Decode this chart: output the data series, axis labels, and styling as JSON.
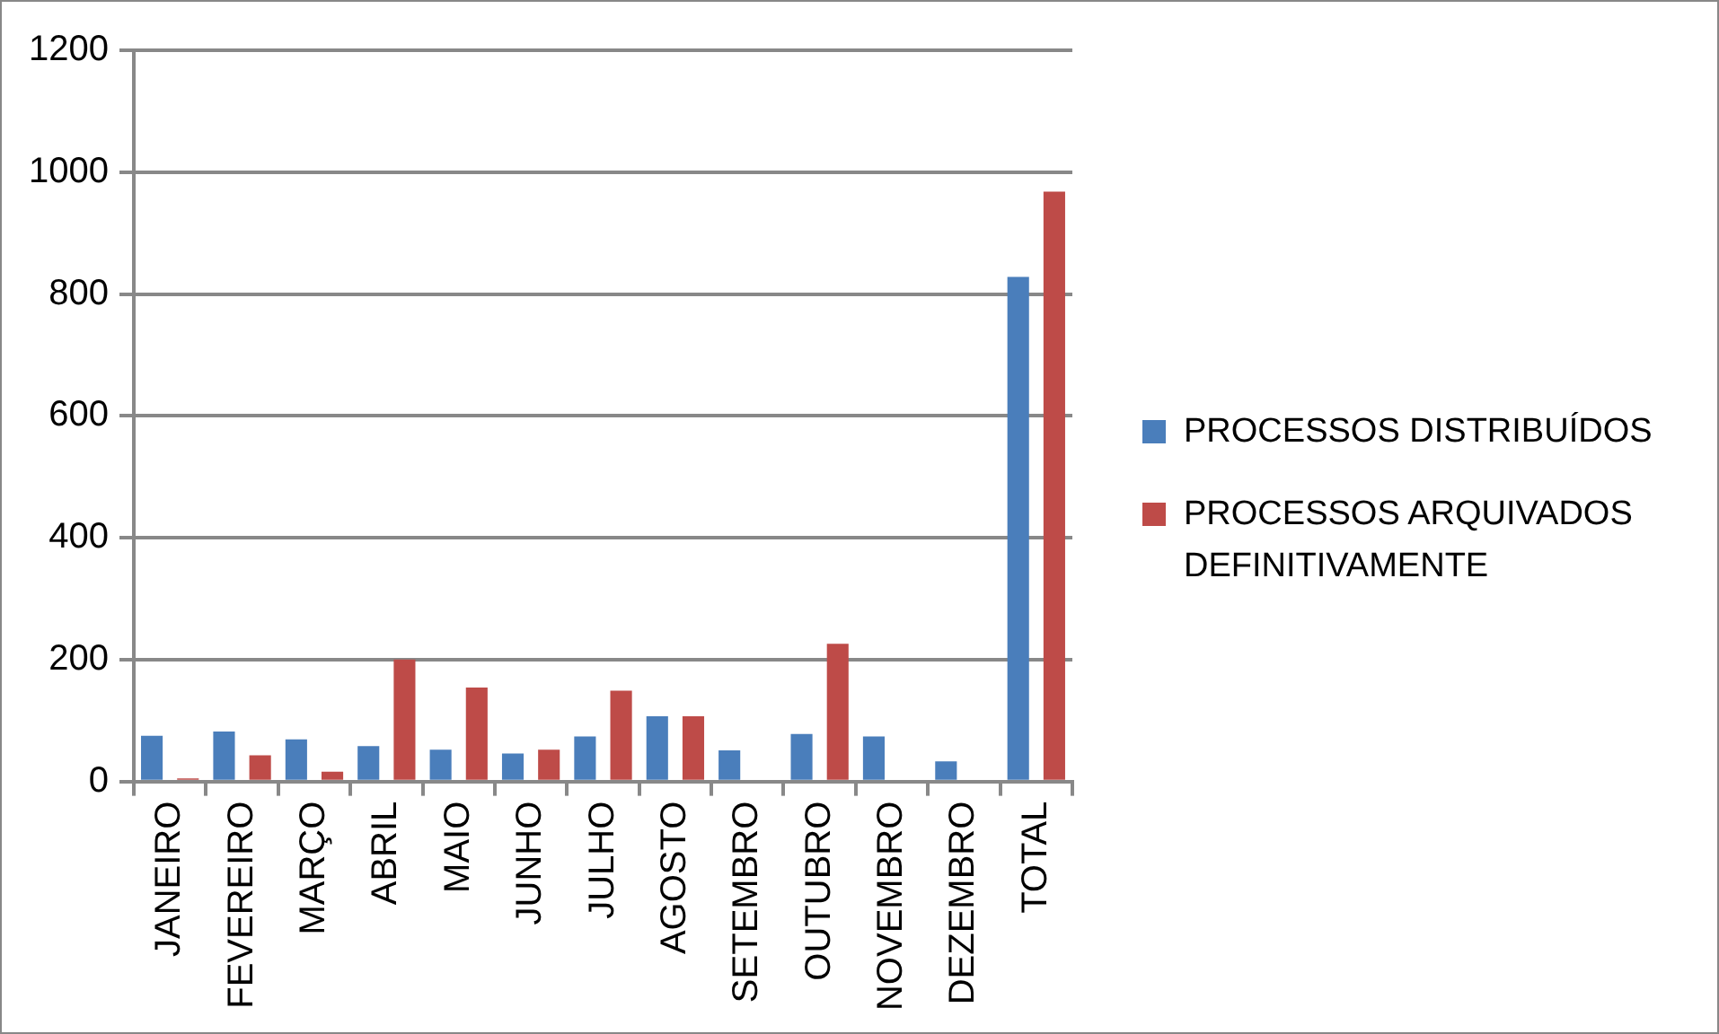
{
  "chart_data": {
    "type": "bar",
    "categories": [
      "JANEIRO",
      "FEVEREIRO",
      "MARÇO",
      "ABRIL",
      "MAIO",
      "JUNHO",
      "JULHO",
      "AGOSTO",
      "SETEMBRO",
      "OUTUBRO",
      "NOVEMBRO",
      "DEZEMBRO",
      "TOTAL"
    ],
    "series": [
      {
        "name": "PROCESSOS DISTRIBUÍDOS",
        "color": "#4a7ebb",
        "values": [
          75,
          82,
          69,
          58,
          52,
          46,
          74,
          107,
          51,
          78,
          74,
          33,
          828
        ]
      },
      {
        "name": "PROCESSOS ARQUIVADOS DEFINITIVAMENTE",
        "color": "#be4b48",
        "values": [
          5,
          43,
          16,
          200,
          154,
          52,
          149,
          107,
          null,
          226,
          null,
          null,
          968
        ]
      }
    ],
    "ylim": [
      0,
      1200
    ],
    "yticks": [
      0,
      200,
      400,
      600,
      800,
      1000,
      1200
    ],
    "grid": "y",
    "legend": "right"
  }
}
